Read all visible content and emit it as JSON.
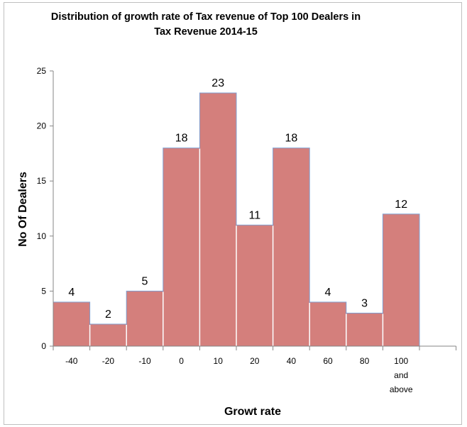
{
  "chart_data": {
    "type": "bar",
    "title": "Distribution of growth rate of Tax revenue of Top 100 Dealers in  Tax Revenue 2014-15",
    "xlabel": "Growt rate",
    "ylabel": "No Of Dealers",
    "categories": [
      "-40",
      "-20",
      "-10",
      "0",
      "10",
      "20",
      "40",
      "60",
      "80",
      "100 and above"
    ],
    "values": [
      4,
      2,
      5,
      18,
      23,
      11,
      18,
      4,
      3,
      12
    ],
    "ylim": [
      0,
      25
    ],
    "yticks": [
      0,
      5,
      10,
      15,
      20,
      25
    ],
    "grid": false,
    "data_labels": true,
    "bar_color": "#d47f7c",
    "bar_outline": "#7f9fd0"
  }
}
